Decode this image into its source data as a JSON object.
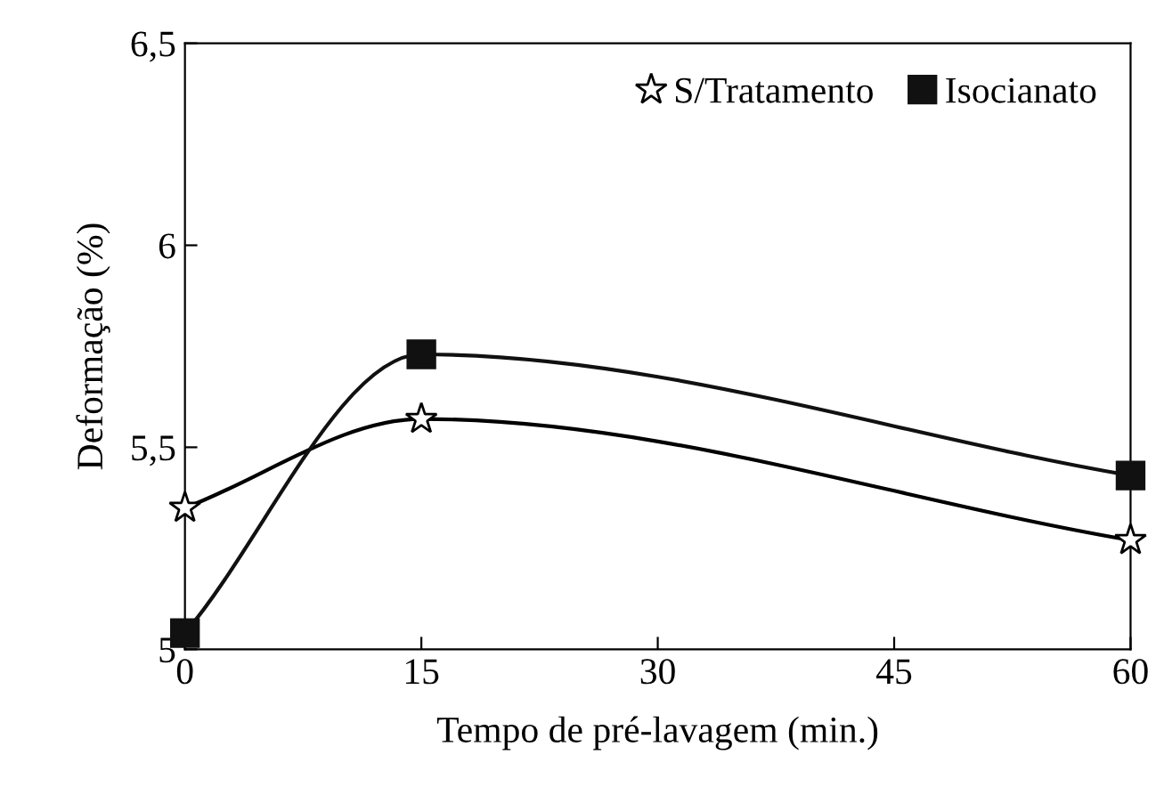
{
  "chart_data": {
    "type": "line",
    "xlabel": "Tempo de pré-lavagem (min.)",
    "ylabel": "Deformação (%)",
    "x": [
      0,
      15,
      60
    ],
    "series": [
      {
        "name": "S/Tratamento",
        "color": "#000000",
        "marker": "star",
        "values": [
          5.35,
          5.57,
          5.27
        ]
      },
      {
        "name": "Isocianato",
        "color": "#111111",
        "marker": "square",
        "values": [
          5.04,
          5.73,
          5.43
        ]
      }
    ],
    "xlim": [
      0,
      60
    ],
    "xticks": [
      0,
      15,
      30,
      45,
      60
    ],
    "ylim": [
      5,
      6.5
    ],
    "yticks": [
      {
        "value": 5,
        "label": "5"
      },
      {
        "value": 5.5,
        "label": "5,5"
      },
      {
        "value": 6,
        "label": "6"
      },
      {
        "value": 6.5,
        "label": "6,5"
      }
    ],
    "legend": "top right",
    "grid": false
  }
}
